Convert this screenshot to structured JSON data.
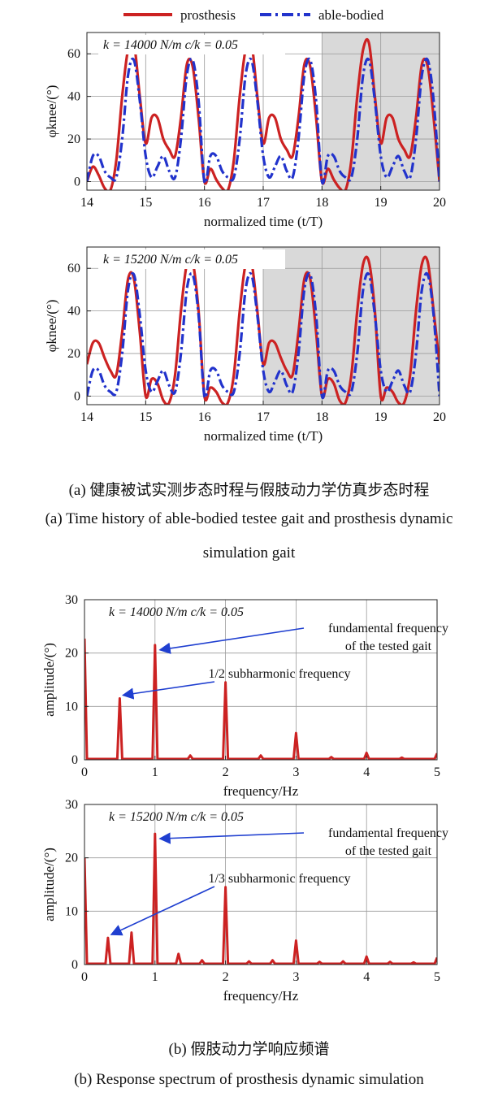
{
  "legend": {
    "prosthesis": "prosthesis",
    "able_bodied": "able-bodied"
  },
  "colors": {
    "prosthesis": "#cc2222",
    "able_bodied": "#2233cc",
    "shade": "#d9d9d9",
    "arrow": "#1f3fd0"
  },
  "captions": {
    "a_cn": "(a) 健康被试实测步态时程与假肢动力学仿真步态时程",
    "a_en_1": "(a) Time history of able-bodied testee gait and prosthesis dynamic",
    "a_en_2": "simulation gait",
    "b_cn": "(b) 假肢动力学响应频谱",
    "b_en": "(b) Response spectrum of prosthesis dynamic simulation"
  },
  "chart_data": [
    {
      "type": "line",
      "panel": "a-top",
      "annotation_k": "k = 14000 N/m",
      "annotation_ck": "c/k = 0.05",
      "xlabel": "normalized time (t/T)",
      "ylabel": "φknee/(°)",
      "xlim": [
        14,
        20
      ],
      "ylim": [
        -4,
        70
      ],
      "xticks": [
        "14",
        "15",
        "16",
        "17",
        "18",
        "19",
        "20"
      ],
      "yticks": [
        "0",
        "20",
        "40",
        "60"
      ],
      "shaded_region": [
        18,
        20
      ],
      "grid": true,
      "series": [
        {
          "name": "prosthesis",
          "x": [
            14.0,
            14.1,
            14.2,
            14.3,
            14.4,
            14.5,
            14.6,
            14.7,
            14.8,
            14.9,
            15.0,
            15.1,
            15.2,
            15.3,
            15.4,
            15.5,
            15.6,
            15.7,
            15.8,
            15.9,
            16.0,
            16.1,
            16.2,
            16.3,
            16.4,
            16.5,
            16.6,
            16.7,
            16.8,
            16.9,
            17.0,
            17.1,
            17.2,
            17.3,
            17.4,
            17.5,
            17.6,
            17.7,
            17.8,
            17.9,
            18.0,
            18.1,
            18.2,
            18.3,
            18.4,
            18.5,
            18.6,
            18.7,
            18.8,
            18.9,
            19.0,
            19.1,
            19.2,
            19.3,
            19.4,
            19.5,
            19.6,
            19.7,
            19.8,
            19.9,
            20.0
          ],
          "values": [
            0,
            7,
            3,
            -3,
            -4,
            10,
            40,
            62,
            65,
            40,
            18,
            30,
            30,
            20,
            15,
            12,
            30,
            55,
            54,
            30,
            0,
            6,
            1,
            -3,
            -4,
            10,
            40,
            62,
            65,
            40,
            18,
            30,
            30,
            20,
            15,
            12,
            30,
            55,
            54,
            30,
            0,
            6,
            1,
            -3,
            -4,
            10,
            40,
            62,
            65,
            40,
            18,
            30,
            30,
            20,
            15,
            12,
            30,
            55,
            54,
            30,
            0
          ]
        },
        {
          "name": "able-bodied",
          "x": [
            14.0,
            14.1,
            14.2,
            14.3,
            14.4,
            14.5,
            14.6,
            14.7,
            14.8,
            14.9,
            15.0,
            15.1,
            15.2,
            15.3,
            15.4,
            15.5,
            15.6,
            15.7,
            15.8,
            15.9,
            16.0,
            16.1,
            16.2,
            16.3,
            16.4,
            16.5,
            16.6,
            16.7,
            16.8,
            16.9,
            17.0,
            17.1,
            17.2,
            17.3,
            17.4,
            17.5,
            17.6,
            17.7,
            17.8,
            17.9,
            18.0,
            18.1,
            18.2,
            18.3,
            18.4,
            18.5,
            18.6,
            18.7,
            18.8,
            18.9,
            19.0,
            19.1,
            19.2,
            19.3,
            19.4,
            19.5,
            19.6,
            19.7,
            19.8,
            19.9,
            20.0
          ],
          "values": [
            0,
            12,
            12,
            5,
            2,
            2,
            20,
            50,
            57,
            38,
            12,
            2,
            7,
            12,
            5,
            2,
            20,
            50,
            57,
            38,
            0,
            12,
            12,
            5,
            2,
            2,
            20,
            50,
            57,
            38,
            12,
            2,
            7,
            12,
            5,
            2,
            20,
            50,
            57,
            38,
            0,
            12,
            12,
            5,
            2,
            2,
            20,
            50,
            57,
            38,
            12,
            2,
            7,
            12,
            5,
            2,
            20,
            50,
            57,
            38,
            0
          ]
        }
      ]
    },
    {
      "type": "line",
      "panel": "a-bottom",
      "annotation_k": "k = 15200 N/m",
      "annotation_ck": "c/k = 0.05",
      "xlabel": "normalized time (t/T)",
      "ylabel": "φknee/(°)",
      "xlim": [
        14,
        20
      ],
      "ylim": [
        -4,
        70
      ],
      "xticks": [
        "14",
        "15",
        "16",
        "17",
        "18",
        "19",
        "20"
      ],
      "yticks": [
        "0",
        "20",
        "40",
        "60"
      ],
      "shaded_region": [
        17,
        20
      ],
      "grid": true,
      "series": [
        {
          "name": "prosthesis",
          "x": [
            14.0,
            14.1,
            14.2,
            14.3,
            14.4,
            14.5,
            14.6,
            14.7,
            14.8,
            14.9,
            15.0,
            15.1,
            15.2,
            15.3,
            15.4,
            15.5,
            15.6,
            15.7,
            15.8,
            15.9,
            16.0,
            16.1,
            16.2,
            16.3,
            16.4,
            16.5,
            16.6,
            16.7,
            16.8,
            16.9,
            17.0,
            17.1,
            17.2,
            17.3,
            17.4,
            17.5,
            17.6,
            17.7,
            17.8,
            17.9,
            18.0,
            18.1,
            18.2,
            18.3,
            18.4,
            18.5,
            18.6,
            18.7,
            18.8,
            18.9,
            19.0,
            19.1,
            19.2,
            19.3,
            19.4,
            19.5,
            19.6,
            19.7,
            19.8,
            19.9,
            20.0
          ],
          "values": [
            15,
            25,
            25,
            18,
            12,
            10,
            30,
            55,
            55,
            30,
            0,
            8,
            6,
            -2,
            -3,
            10,
            40,
            62,
            63,
            40,
            0,
            4,
            2,
            -3,
            -3,
            10,
            40,
            62,
            63,
            40,
            15,
            25,
            25,
            18,
            12,
            10,
            30,
            55,
            55,
            30,
            0,
            8,
            6,
            -2,
            -3,
            10,
            40,
            62,
            63,
            40,
            0,
            4,
            2,
            -3,
            -3,
            10,
            40,
            62,
            63,
            40,
            15
          ]
        },
        {
          "name": "able-bodied",
          "x": [
            14.0,
            14.1,
            14.2,
            14.3,
            14.4,
            14.5,
            14.6,
            14.7,
            14.8,
            14.9,
            15.0,
            15.1,
            15.2,
            15.3,
            15.4,
            15.5,
            15.6,
            15.7,
            15.8,
            15.9,
            16.0,
            16.1,
            16.2,
            16.3,
            16.4,
            16.5,
            16.6,
            16.7,
            16.8,
            16.9,
            17.0,
            17.1,
            17.2,
            17.3,
            17.4,
            17.5,
            17.6,
            17.7,
            17.8,
            17.9,
            18.0,
            18.1,
            18.2,
            18.3,
            18.4,
            18.5,
            18.6,
            18.7,
            18.8,
            18.9,
            19.0,
            19.1,
            19.2,
            19.3,
            19.4,
            19.5,
            19.6,
            19.7,
            19.8,
            19.9,
            20.0
          ],
          "values": [
            0,
            12,
            12,
            5,
            2,
            2,
            20,
            50,
            57,
            38,
            12,
            2,
            7,
            12,
            5,
            2,
            20,
            50,
            57,
            38,
            0,
            12,
            12,
            5,
            2,
            2,
            20,
            50,
            57,
            38,
            12,
            2,
            7,
            12,
            5,
            2,
            20,
            50,
            57,
            38,
            0,
            12,
            12,
            5,
            2,
            2,
            20,
            50,
            57,
            38,
            12,
            2,
            7,
            12,
            5,
            2,
            20,
            50,
            57,
            38,
            0
          ]
        }
      ]
    },
    {
      "type": "line",
      "panel": "b-top",
      "annotation_k": "k = 14000 N/m",
      "annotation_ck": "c/k = 0.05",
      "xlabel": "frequency/Hz",
      "ylabel": "amplitude/(°)",
      "xlim": [
        0,
        5
      ],
      "ylim": [
        0,
        30
      ],
      "xticks": [
        "0",
        "1",
        "2",
        "3",
        "4",
        "5"
      ],
      "yticks": [
        "0",
        "10",
        "20",
        "30"
      ],
      "grid": true,
      "peaks": [
        [
          0,
          22.7
        ],
        [
          0.5,
          11.5
        ],
        [
          1,
          21.5
        ],
        [
          1.5,
          0.8
        ],
        [
          2,
          14.5
        ],
        [
          2.5,
          0.8
        ],
        [
          3,
          5
        ],
        [
          3.5,
          0.5
        ],
        [
          4,
          1.3
        ],
        [
          4.5,
          0.4
        ],
        [
          5,
          1.2
        ]
      ],
      "annotations": [
        {
          "text_1": "fundamental frequency",
          "text_2": "of the tested gait",
          "x": 1.0,
          "y": 21.5
        },
        {
          "text_1": "1/2 subharmonic frequency",
          "x": 0.5,
          "y": 11.5
        }
      ]
    },
    {
      "type": "line",
      "panel": "b-bottom",
      "annotation_k": "k = 15200 N/m",
      "annotation_ck": "c/k = 0.05",
      "xlabel": "frequency/Hz",
      "ylabel": "amplitude/(°)",
      "xlim": [
        0,
        5
      ],
      "ylim": [
        0,
        30
      ],
      "xticks": [
        "0",
        "1",
        "2",
        "3",
        "4",
        "5"
      ],
      "yticks": [
        "0",
        "10",
        "20",
        "30"
      ],
      "grid": true,
      "peaks": [
        [
          0,
          20
        ],
        [
          0.333,
          5
        ],
        [
          0.667,
          6
        ],
        [
          1,
          24.5
        ],
        [
          1.333,
          2
        ],
        [
          1.667,
          0.8
        ],
        [
          2,
          14.5
        ],
        [
          2.333,
          0.6
        ],
        [
          2.667,
          0.8
        ],
        [
          3,
          4.5
        ],
        [
          3.333,
          0.5
        ],
        [
          3.667,
          0.6
        ],
        [
          4,
          1.5
        ],
        [
          4.333,
          0.5
        ],
        [
          4.667,
          0.4
        ],
        [
          5,
          1.3
        ]
      ],
      "annotations": [
        {
          "text_1": "fundamental frequency",
          "text_2": "of the tested gait",
          "x": 1.0,
          "y": 24.5
        },
        {
          "text_1": "1/3 subharmonic frequency",
          "x": 0.333,
          "y": 5
        }
      ]
    }
  ]
}
